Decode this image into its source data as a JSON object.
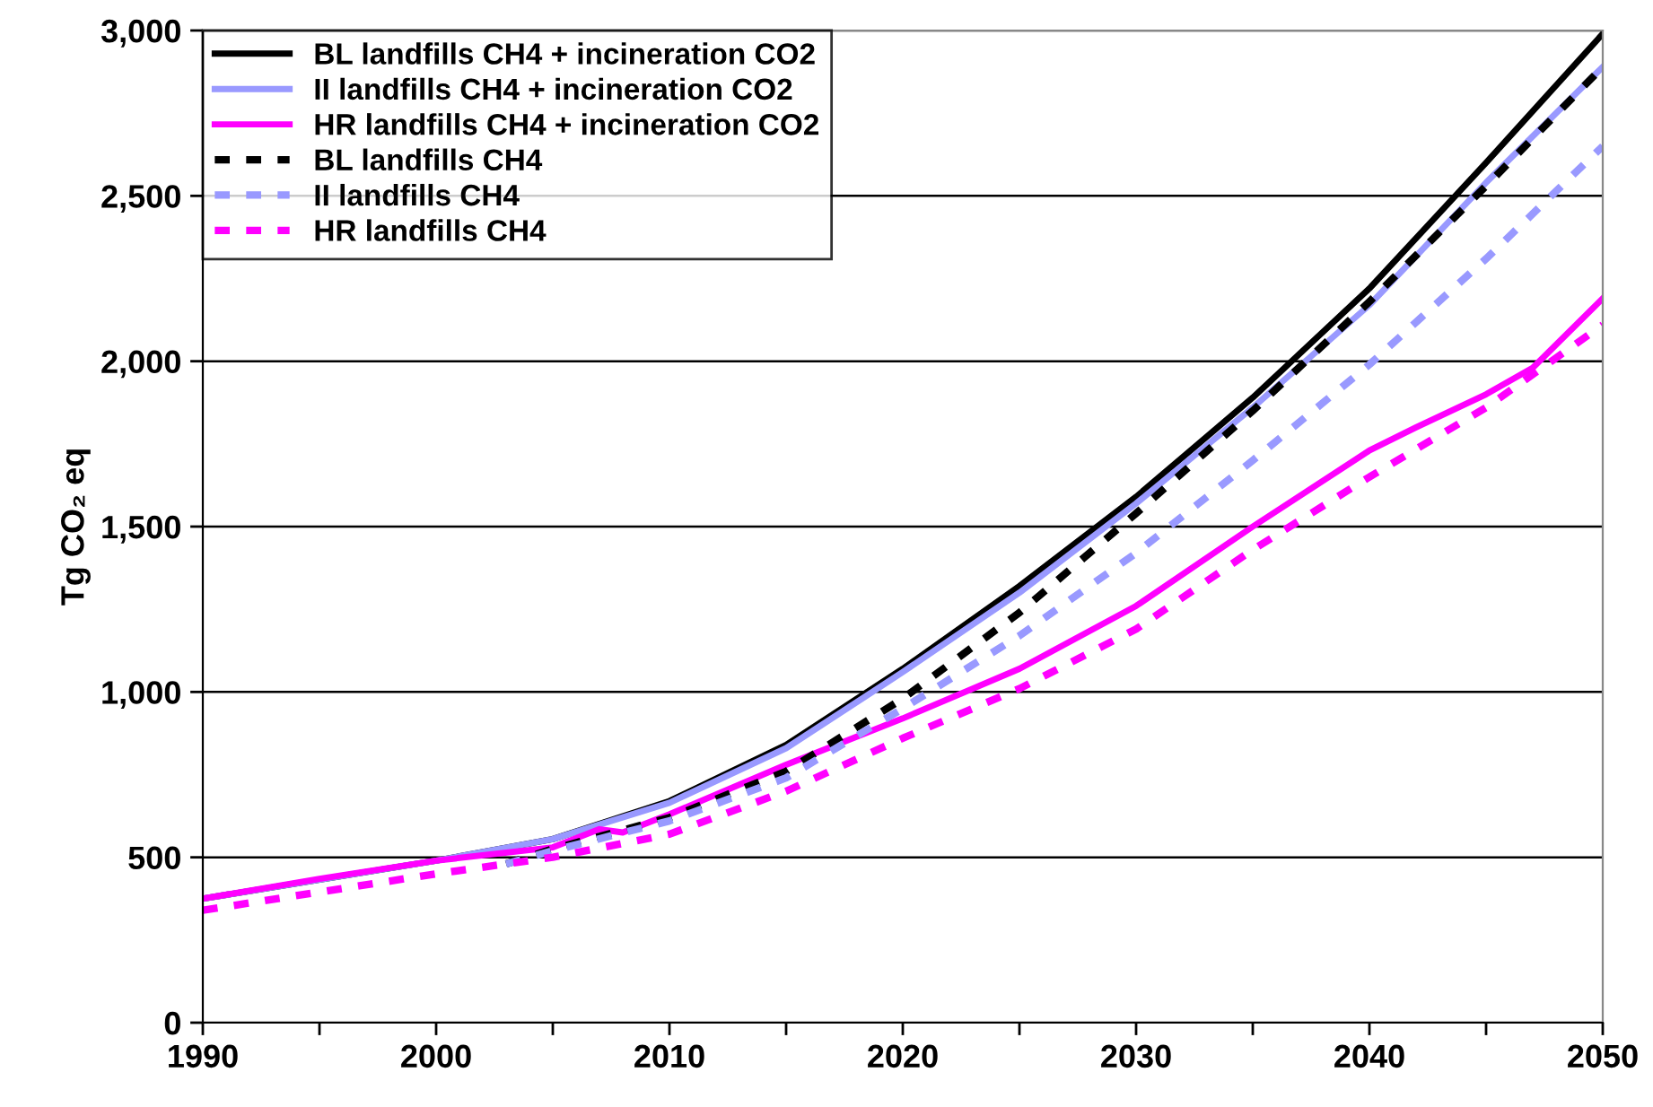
{
  "chart_data": {
    "type": "line",
    "ylabel": "Tg CO₂ eq",
    "xlim": [
      1990,
      2050
    ],
    "ylim": [
      0,
      3000
    ],
    "xticks": [
      1990,
      {
        "value": 1995,
        "label": null
      },
      2000,
      {
        "value": 2005,
        "label": null
      },
      2010,
      {
        "value": 2015,
        "label": null
      },
      2020,
      {
        "value": 2025,
        "label": null
      },
      2030,
      {
        "value": 2035,
        "label": null
      },
      2040,
      {
        "value": 2045,
        "label": null
      },
      2050
    ],
    "yticks": [
      {
        "value": 0,
        "label": "0"
      },
      {
        "value": 500,
        "label": "500"
      },
      {
        "value": 1000,
        "label": "1,000"
      },
      {
        "value": 1500,
        "label": "1,500"
      },
      {
        "value": 2000,
        "label": "2,000"
      },
      {
        "value": 2500,
        "label": "2,500"
      },
      {
        "value": 3000,
        "label": "3,000"
      }
    ],
    "grid": "y",
    "legend": "top left",
    "series": [
      {
        "name": "BL landfills CH4 + incineration CO2",
        "color": "#000000",
        "line_style": "solid",
        "x": [
          1990,
          2000,
          2005,
          2010,
          2015,
          2020,
          2025,
          2030,
          2035,
          2040,
          2045,
          2050
        ],
        "values": [
          375,
          490,
          555,
          670,
          840,
          1070,
          1320,
          1590,
          1890,
          2220,
          2600,
          2990
        ]
      },
      {
        "name": "II landfills CH4 + incineration CO2",
        "color": "#9999ff",
        "line_style": "solid",
        "x": [
          1990,
          2000,
          2005,
          2010,
          2015,
          2020,
          2025,
          2030,
          2035,
          2040,
          2045,
          2050
        ],
        "values": [
          375,
          490,
          555,
          665,
          830,
          1060,
          1300,
          1570,
          1860,
          2170,
          2540,
          2890
        ]
      },
      {
        "name": "HR landfills CH4 + incineration CO2",
        "color": "#ff00ff",
        "line_style": "solid",
        "x": [
          1990,
          1995,
          2000,
          2005,
          2007,
          2008,
          2010,
          2015,
          2020,
          2025,
          2030,
          2035,
          2040,
          2042,
          2045,
          2047,
          2050
        ],
        "values": [
          375,
          435,
          490,
          530,
          585,
          575,
          630,
          780,
          920,
          1070,
          1260,
          1500,
          1730,
          1800,
          1900,
          1980,
          2190
        ]
      },
      {
        "name": "BL landfills CH4",
        "color": "#000000",
        "line_style": "dashed",
        "x": [
          2003,
          2005,
          2010,
          2015,
          2020,
          2025,
          2030,
          2035,
          2040,
          2045,
          2050
        ],
        "values": [
          480,
          525,
          620,
          760,
          980,
          1240,
          1540,
          1850,
          2180,
          2530,
          2890
        ]
      },
      {
        "name": "II landfills CH4",
        "color": "#9999ff",
        "line_style": "dashed",
        "x": [
          2003,
          2005,
          2010,
          2015,
          2020,
          2025,
          2030,
          2035,
          2040,
          2045,
          2050
        ],
        "values": [
          480,
          520,
          610,
          740,
          950,
          1170,
          1420,
          1700,
          1990,
          2310,
          2650
        ]
      },
      {
        "name": "HR landfills CH4",
        "color": "#ff00ff",
        "line_style": "dashed",
        "x": [
          1990,
          1995,
          2000,
          2005,
          2010,
          2015,
          2020,
          2025,
          2030,
          2035,
          2040,
          2045,
          2050
        ],
        "values": [
          340,
          395,
          450,
          500,
          570,
          700,
          860,
          1010,
          1190,
          1430,
          1650,
          1860,
          2110
        ]
      }
    ]
  }
}
